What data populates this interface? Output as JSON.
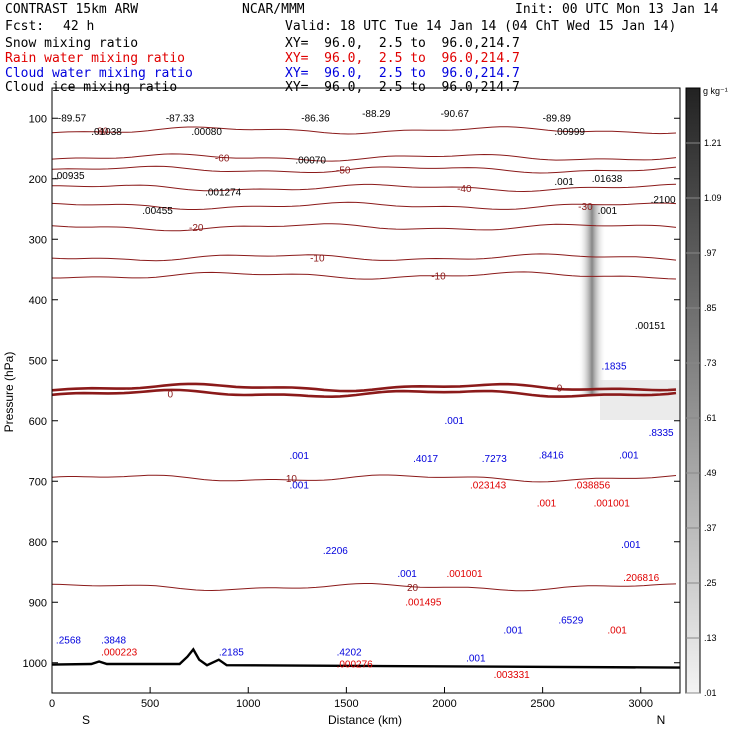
{
  "header": {
    "model": "CONTRAST 15km ARW",
    "org": "NCAR/MMM",
    "init": "Init: 00 UTC Mon 13 Jan 14",
    "fcst_label": "Fcst:",
    "fcst_value": "42 h",
    "valid": "Valid: 18 UTC Tue 14 Jan 14 (04 ChT Wed 15 Jan 14)"
  },
  "fields": [
    {
      "name": "Snow mixing ratio",
      "xy": "XY=  96.0,  2.5 to  96.0,214.7",
      "color": "#000000"
    },
    {
      "name": "Rain water mixing ratio",
      "xy": "XY=  96.0,  2.5 to  96.0,214.7",
      "color": "#e00000"
    },
    {
      "name": "Cloud water mixing ratio",
      "xy": "XY=  96.0,  2.5 to  96.0,214.7",
      "color": "#0000dd"
    },
    {
      "name": "Cloud ice mixing ratio",
      "xy": "XY=  96.0,  2.5 to  96.0,214.7",
      "color": "#000000"
    }
  ],
  "chart_data": {
    "type": "contour-cross-section",
    "xlabel": "Distance (km)",
    "ylabel": "Pressure (hPa)",
    "xlim": [
      0,
      3200
    ],
    "ylim": [
      1050,
      50
    ],
    "x_ticks": [
      0,
      500,
      1000,
      1500,
      2000,
      2500,
      3000
    ],
    "y_ticks": [
      100,
      200,
      300,
      400,
      500,
      600,
      700,
      800,
      900,
      1000
    ],
    "end_labels": {
      "left": "S",
      "right": "N"
    },
    "colorbar": {
      "unit": "g kg⁻¹",
      "ticks": [
        ".01",
        ".13",
        ".25",
        ".37",
        ".49",
        ".61",
        ".73",
        ".85",
        ".97",
        "1.09",
        "1.21"
      ],
      "min": 0.01,
      "max": 1.33
    },
    "temperature_contours": [
      {
        "label": "-80",
        "p": 120
      },
      {
        "label": "-60",
        "p": 165
      },
      {
        "label": "-50",
        "p": 185
      },
      {
        "label": "-40",
        "p": 215
      },
      {
        "label": "-30",
        "p": 245
      },
      {
        "label": "-20",
        "p": 280
      },
      {
        "label": "-10",
        "p": 330
      },
      {
        "label": "-10",
        "p": 360
      },
      {
        "label": "0",
        "p": 545
      },
      {
        "label": "0",
        "p": 555
      },
      {
        "label": "10",
        "p": 695
      },
      {
        "label": "20",
        "p": 875
      }
    ],
    "surface_pressure_profile": [
      [
        0,
        1003
      ],
      [
        200,
        1002
      ],
      [
        240,
        998
      ],
      [
        280,
        1002
      ],
      [
        650,
        1002
      ],
      [
        690,
        990
      ],
      [
        720,
        978
      ],
      [
        750,
        995
      ],
      [
        790,
        1004
      ],
      [
        850,
        995
      ],
      [
        890,
        1004
      ],
      [
        3200,
        1008
      ]
    ],
    "extrema_labels": [
      {
        "text": "-89.57",
        "x": 30,
        "p": 105,
        "color": "black"
      },
      {
        "text": "-87.33",
        "x": 580,
        "p": 105,
        "color": "black"
      },
      {
        "text": "-86.36",
        "x": 1270,
        "p": 105,
        "color": "black"
      },
      {
        "text": "-88.29",
        "x": 1580,
        "p": 98,
        "color": "black"
      },
      {
        "text": "-90.67",
        "x": 1980,
        "p": 98,
        "color": "black"
      },
      {
        "text": "-89.89",
        "x": 2500,
        "p": 105,
        "color": "black"
      },
      {
        "text": ".01038",
        "x": 200,
        "p": 128,
        "color": "black"
      },
      {
        "text": ".00080",
        "x": 710,
        "p": 128,
        "color": "black"
      },
      {
        "text": ".00999",
        "x": 2560,
        "p": 128,
        "color": "black"
      },
      {
        "text": ".00070",
        "x": 1240,
        "p": 175,
        "color": "black"
      },
      {
        "text": ".00935",
        "x": 10,
        "p": 200,
        "color": "black"
      },
      {
        "text": ".01638",
        "x": 2750,
        "p": 205,
        "color": "black"
      },
      {
        "text": ".00455",
        "x": 460,
        "p": 258,
        "color": "black"
      },
      {
        "text": ".001274",
        "x": 780,
        "p": 228,
        "color": "black"
      },
      {
        "text": ".001",
        "x": 2560,
        "p": 210,
        "color": "black"
      },
      {
        "text": ".001",
        "x": 2780,
        "p": 258,
        "color": "black"
      },
      {
        "text": ".2100",
        "x": 3050,
        "p": 240,
        "color": "black"
      },
      {
        "text": ".00151",
        "x": 2970,
        "p": 448,
        "color": "black"
      },
      {
        "text": ".1835",
        "x": 2800,
        "p": 515,
        "color": "blue"
      },
      {
        "text": ".8335",
        "x": 3040,
        "p": 625,
        "color": "blue"
      },
      {
        "text": ".001",
        "x": 2000,
        "p": 605,
        "color": "blue"
      },
      {
        "text": ".001",
        "x": 1210,
        "p": 663,
        "color": "blue"
      },
      {
        "text": ".001",
        "x": 1210,
        "p": 712,
        "color": "blue"
      },
      {
        "text": ".4017",
        "x": 1840,
        "p": 668,
        "color": "blue"
      },
      {
        "text": ".7273",
        "x": 2190,
        "p": 668,
        "color": "blue"
      },
      {
        "text": ".8416",
        "x": 2480,
        "p": 662,
        "color": "blue"
      },
      {
        "text": ".001",
        "x": 2890,
        "p": 662,
        "color": "blue"
      },
      {
        "text": ".023143",
        "x": 2130,
        "p": 712,
        "color": "red"
      },
      {
        "text": ".038856",
        "x": 2660,
        "p": 712,
        "color": "red"
      },
      {
        "text": ".001",
        "x": 2470,
        "p": 742,
        "color": "red"
      },
      {
        "text": ".001001",
        "x": 2760,
        "p": 742,
        "color": "red"
      },
      {
        "text": ".2206",
        "x": 1380,
        "p": 820,
        "color": "blue"
      },
      {
        "text": ".001",
        "x": 1760,
        "p": 858,
        "color": "blue"
      },
      {
        "text": ".001001",
        "x": 2010,
        "p": 858,
        "color": "red"
      },
      {
        "text": ".001",
        "x": 2900,
        "p": 810,
        "color": "blue"
      },
      {
        "text": ".206816",
        "x": 2910,
        "p": 865,
        "color": "red"
      },
      {
        "text": ".001495",
        "x": 1800,
        "p": 905,
        "color": "red"
      },
      {
        "text": ".6529",
        "x": 2580,
        "p": 935,
        "color": "blue"
      },
      {
        "text": ".001",
        "x": 2300,
        "p": 952,
        "color": "blue"
      },
      {
        "text": ".001",
        "x": 2830,
        "p": 952,
        "color": "red"
      },
      {
        "text": ".2568",
        "x": 20,
        "p": 968,
        "color": "blue"
      },
      {
        "text": ".3848",
        "x": 250,
        "p": 968,
        "color": "blue"
      },
      {
        "text": ".000223",
        "x": 250,
        "p": 988,
        "color": "red"
      },
      {
        "text": ".2185",
        "x": 850,
        "p": 988,
        "color": "blue"
      },
      {
        "text": ".4202",
        "x": 1450,
        "p": 988,
        "color": "blue"
      },
      {
        "text": ".000276",
        "x": 1450,
        "p": 1008,
        "color": "red"
      },
      {
        "text": ".001",
        "x": 2110,
        "p": 998,
        "color": "blue"
      },
      {
        "text": ".003331",
        "x": 2250,
        "p": 1025,
        "color": "red"
      }
    ]
  }
}
